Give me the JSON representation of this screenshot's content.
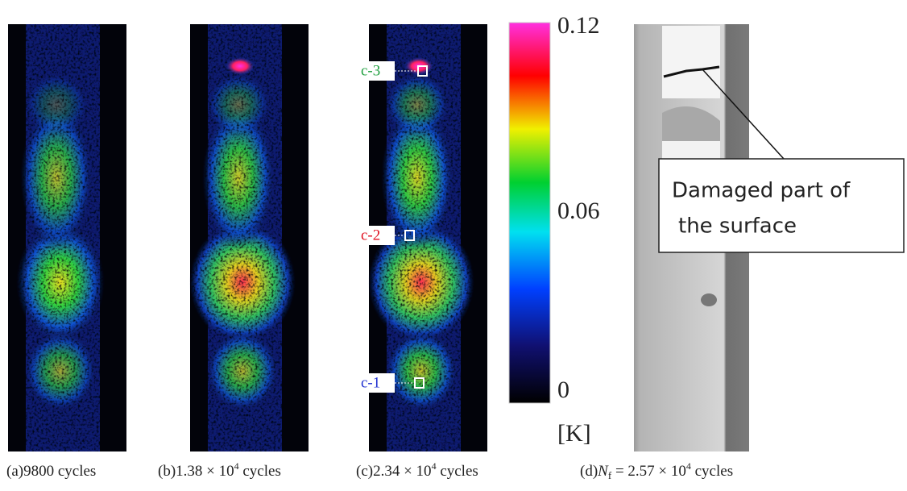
{
  "panels": [
    {
      "caption": {
        "prefix": "(a)9800 cycles"
      }
    },
    {
      "caption": {
        "prefix": "(b)1.38 × 10",
        "sup": "4",
        "suffix": " cycles"
      }
    },
    {
      "caption": {
        "prefix": "(c)2.34 × 10",
        "sup": "4",
        "suffix": " cycles"
      },
      "markers": [
        "c-3",
        "c-2",
        "c-1"
      ]
    },
    {
      "caption": {
        "prefix": "(d)",
        "italic": "N",
        "sub": "f",
        "middle": " = 2.57 × 10",
        "sup": "4",
        "suffix": " cycles"
      },
      "annotation": [
        "Damaged part of",
        "the surface"
      ]
    }
  ],
  "colorbar": {
    "lim": [
      0,
      0.12
    ],
    "ticks": [
      0.12,
      0.06,
      0
    ],
    "unit": "[K]"
  }
}
